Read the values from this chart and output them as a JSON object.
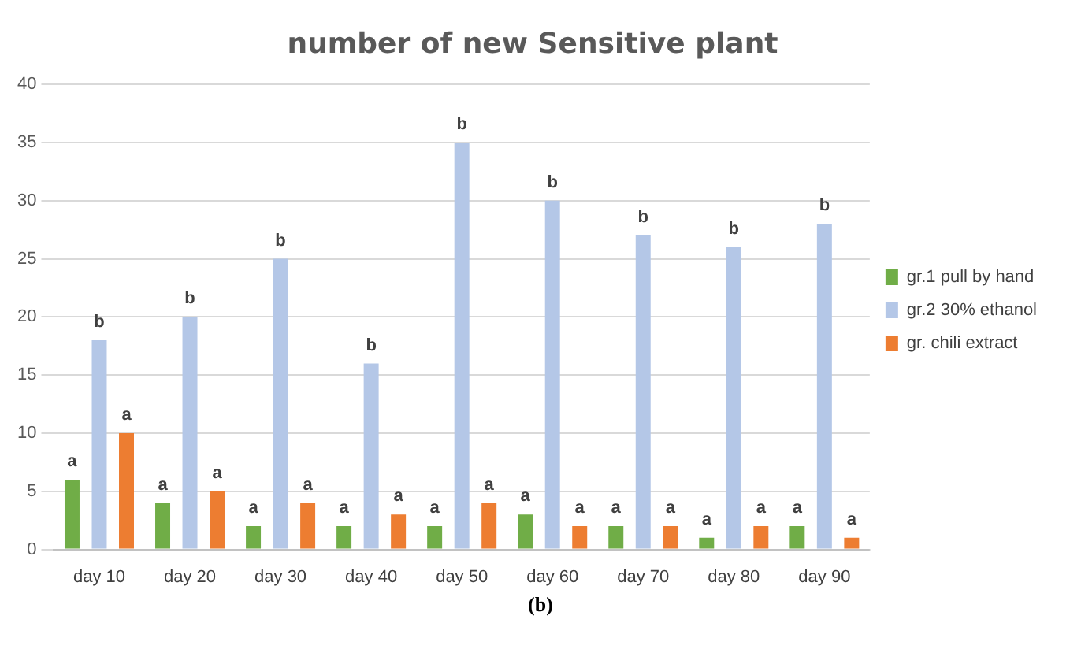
{
  "chart_data": {
    "type": "bar",
    "title": "number of new Sensitive plant",
    "categories": [
      "day 10",
      "day 20",
      "day 30",
      "day 40",
      "day 50",
      "day 60",
      "day 70",
      "day 80",
      "day 90"
    ],
    "series": [
      {
        "name": "gr.1 pull by hand",
        "color": "#70ad47",
        "values": [
          6,
          4,
          2,
          2,
          2,
          3,
          2,
          1,
          2
        ],
        "value_labels": [
          "a",
          "a",
          "a",
          "a",
          "a",
          "a",
          "a",
          "a",
          "a"
        ]
      },
      {
        "name": "gr.2 30% ethanol",
        "color": "#b4c7e7",
        "values": [
          18,
          20,
          25,
          16,
          35,
          30,
          27,
          26,
          28
        ],
        "value_labels": [
          "b",
          "b",
          "b",
          "b",
          "b",
          "b",
          "b",
          "b",
          "b"
        ]
      },
      {
        "name": "gr. chili extract",
        "color": "#ed7d31",
        "values": [
          10,
          5,
          4,
          3,
          4,
          2,
          2,
          2,
          1
        ],
        "value_labels": [
          "a",
          "a",
          "a",
          "a",
          "a",
          "a",
          "a",
          "a",
          "a"
        ]
      }
    ],
    "ylim": [
      0,
      40
    ],
    "yticks": [
      0,
      5,
      10,
      15,
      20,
      25,
      30,
      35,
      40
    ],
    "grid": "y",
    "legend": "right",
    "annotations": [
      "(b)"
    ]
  }
}
